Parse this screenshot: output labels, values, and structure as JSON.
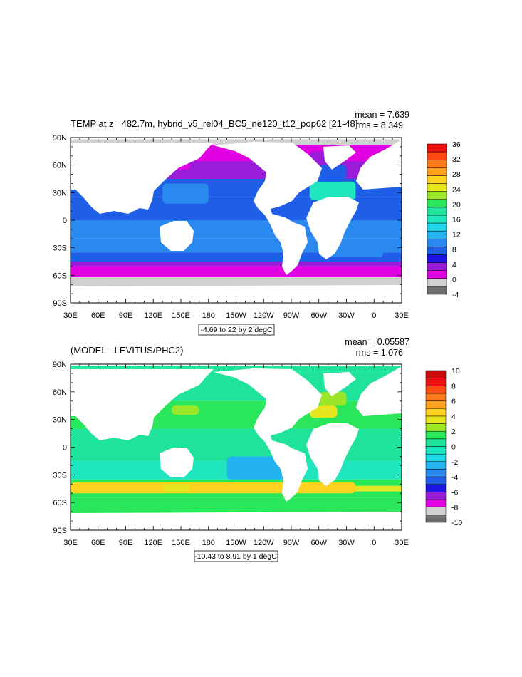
{
  "colors": {
    "land": "#ffffff",
    "frame": "#000000"
  },
  "chart_data": [
    {
      "type": "heatmap",
      "title": "TEMP at z= 482.7m, hybrid_v5_rel04_BC5_ne120_t12_pop62 [21-48]",
      "stats": [
        "mean = 7.639",
        "rms = 8.349"
      ],
      "range_label": "-4.69 to 22 by 2 degC",
      "x_ticks": [
        "30E",
        "60E",
        "90E",
        "120E",
        "150E",
        "180",
        "150W",
        "120W",
        "90W",
        "60W",
        "30W",
        "0",
        "30E"
      ],
      "y_ticks": [
        "90N",
        "60N",
        "30N",
        "0",
        "30S",
        "60S",
        "90S"
      ],
      "colorbar": {
        "labels": [
          "36",
          "32",
          "28",
          "24",
          "20",
          "16",
          "12",
          "8",
          "4",
          "0",
          "-4"
        ],
        "levels": [
          -4,
          0,
          2,
          4,
          6,
          8,
          10,
          12,
          14,
          16,
          18,
          20,
          22,
          24,
          26,
          28,
          30,
          32,
          34,
          36
        ],
        "colors": [
          "#6e6e6e",
          "#d0d0d0",
          "#e200e2",
          "#9a1cd8",
          "#1e14e6",
          "#1f5fe8",
          "#2a89ee",
          "#22b3f0",
          "#1fd6e6",
          "#1fe6bf",
          "#1fe39a",
          "#2ae65a",
          "#9be628",
          "#e6e61f",
          "#ffd21f",
          "#ffa01f",
          "#ff7a1a",
          "#ff4a14",
          "#ee1010"
        ]
      },
      "bands": [
        {
          "lat": [
            82,
            88
          ],
          "value": 1
        },
        {
          "lat": [
            64,
            82
          ],
          "value": 3
        },
        {
          "lat": [
            45,
            64
          ],
          "value": 5
        },
        {
          "lat": [
            25,
            45
          ],
          "value": 9
        },
        {
          "lat": [
            0,
            25
          ],
          "value": 9
        },
        {
          "lat": [
            -20,
            0
          ],
          "value": 10
        },
        {
          "lat": [
            -35,
            -20
          ],
          "value": 11
        },
        {
          "lat": [
            -45,
            -35
          ],
          "value": 9
        },
        {
          "lat": [
            -50,
            -45
          ],
          "value": 5
        },
        {
          "lat": [
            -62,
            -50
          ],
          "value": 3
        },
        {
          "lat": [
            -78,
            -62
          ],
          "value": 1
        }
      ],
      "patches": [
        {
          "lon": [
            -70,
            -20
          ],
          "lat": [
            22,
            42
          ],
          "value": 17
        },
        {
          "lon": [
            -60,
            -30
          ],
          "lat": [
            42,
            60
          ],
          "value": 9
        },
        {
          "lon": [
            -70,
            -45
          ],
          "lat": [
            60,
            75
          ],
          "value": 5
        },
        {
          "lon": [
            130,
            180
          ],
          "lat": [
            18,
            40
          ],
          "value": 11
        },
        {
          "lon": [
            -60,
            10
          ],
          "lat": [
            -40,
            -25
          ],
          "value": 11
        },
        {
          "lon": [
            110,
            160
          ],
          "lat": [
            55,
            65
          ],
          "value": 3
        }
      ]
    },
    {
      "type": "heatmap",
      "title": "(MODEL - LEVITUS/PHC2)",
      "stats": [
        "mean = 0.05587",
        "rms = 1.076"
      ],
      "range_label": "-10.43 to 8.91 by 1 degC",
      "x_ticks": [
        "30E",
        "60E",
        "90E",
        "120E",
        "150E",
        "180",
        "150W",
        "120W",
        "90W",
        "60W",
        "30W",
        "0",
        "30E"
      ],
      "y_ticks": [
        "90N",
        "60N",
        "30N",
        "0",
        "30S",
        "60S",
        "90S"
      ],
      "colorbar": {
        "labels": [
          "10",
          "8",
          "6",
          "4",
          "2",
          "0",
          "-2",
          "-4",
          "-6",
          "-8",
          "-10"
        ],
        "levels": [
          -10,
          -9,
          -8,
          -7,
          -6,
          -5,
          -4,
          -3,
          -2,
          -1,
          0,
          1,
          2,
          3,
          4,
          5,
          6,
          7,
          8,
          9,
          10
        ],
        "colors": [
          "#6e6e6e",
          "#d0d0d0",
          "#e200e2",
          "#9a1cd8",
          "#1e14e6",
          "#1f5fe8",
          "#2a89ee",
          "#22b3f0",
          "#1fd6e6",
          "#1fe6bf",
          "#1fe39a",
          "#2ae65a",
          "#9be628",
          "#e6e61f",
          "#ffd21f",
          "#ffa01f",
          "#ff7a1a",
          "#ff4a14",
          "#ee1010",
          "#cc0a0a"
        ]
      },
      "bands": [
        {
          "lat": [
            82,
            88
          ],
          "value": 0.5
        },
        {
          "lat": [
            50,
            82
          ],
          "value": 0.5
        },
        {
          "lat": [
            20,
            50
          ],
          "value": 1.5
        },
        {
          "lat": [
            -15,
            20
          ],
          "value": 0.3
        },
        {
          "lat": [
            -35,
            -15
          ],
          "value": -0.5
        },
        {
          "lat": [
            -42,
            -35
          ],
          "value": 1.5
        },
        {
          "lat": [
            -48,
            -42
          ],
          "value": 3.2
        },
        {
          "lat": [
            -55,
            -48
          ],
          "value": 1.6
        },
        {
          "lat": [
            -78,
            -55
          ],
          "value": 1.2
        }
      ],
      "patches": [
        {
          "lon": [
            -70,
            -40
          ],
          "lat": [
            32,
            45
          ],
          "value": 3.5
        },
        {
          "lon": [
            -60,
            -30
          ],
          "lat": [
            45,
            60
          ],
          "value": 2.5
        },
        {
          "lon": [
            -20,
            30
          ],
          "lat": [
            -50,
            -38
          ],
          "value": 4.5
        },
        {
          "lon": [
            130,
            160
          ],
          "lat": [
            -48,
            -40
          ],
          "value": 3.5
        },
        {
          "lon": [
            140,
            170
          ],
          "lat": [
            35,
            45
          ],
          "value": 2.5
        },
        {
          "lon": [
            -160,
            -90
          ],
          "lat": [
            -35,
            -10
          ],
          "value": -2.5
        }
      ]
    }
  ]
}
